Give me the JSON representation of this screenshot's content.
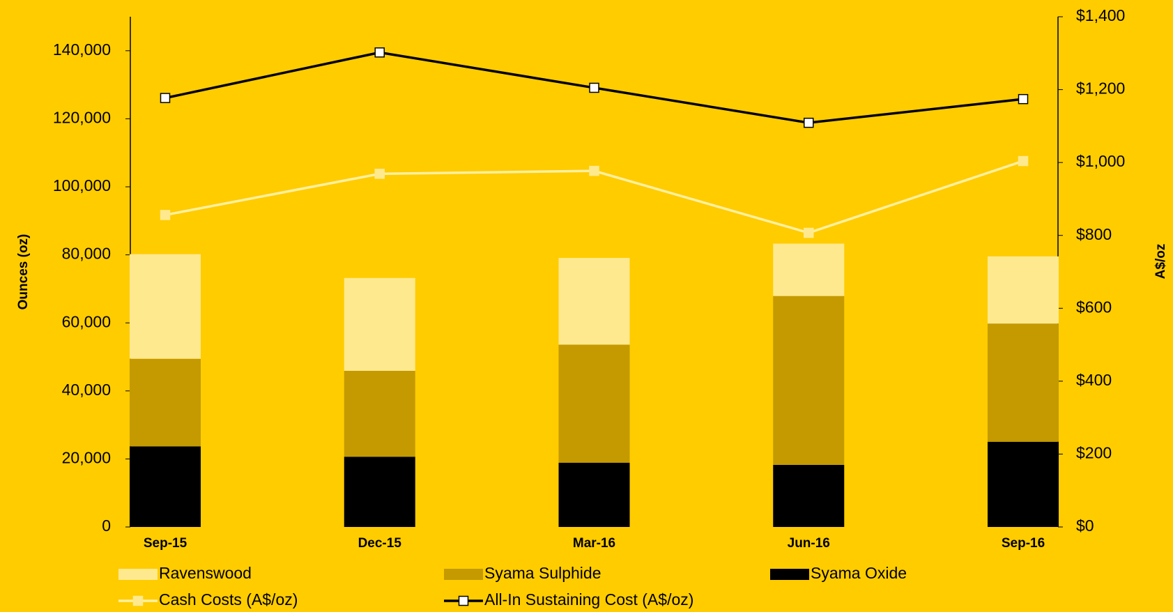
{
  "chart_data": {
    "type": "bar",
    "y_label": "Ounces (oz)",
    "y2_label": "A$/oz",
    "categories": [
      "Sep-15",
      "Dec-15",
      "Mar-16",
      "Jun-16",
      "Sep-16"
    ],
    "series": [
      {
        "name": "Syama Oxide",
        "type": "bar",
        "color": "#000000",
        "values": [
          23700,
          20650,
          18900,
          18250,
          25050
        ]
      },
      {
        "name": "Syama Sulphide",
        "type": "bar",
        "color": "#C49A00",
        "values": [
          25750,
          25250,
          34700,
          49650,
          34750
        ]
      },
      {
        "name": "Ravenswood",
        "type": "bar",
        "color": "#FFE98F",
        "values": [
          30750,
          27300,
          25500,
          15400,
          19750
        ]
      },
      {
        "name": "Cash Costs (A$/oz)",
        "type": "line",
        "axis": "y2",
        "color": "#FFF0A0",
        "marker_color": "#FFE98F",
        "values": [
          856,
          969,
          977,
          807,
          1004
        ]
      },
      {
        "name": "All-In Sustaining Cost (A$/oz)",
        "type": "line",
        "axis": "y2",
        "color": "#000000",
        "marker_color": "#FFFFFF",
        "values": [
          1177,
          1302,
          1205,
          1109,
          1174
        ]
      }
    ],
    "legend_order": [
      2,
      1,
      0,
      3,
      4
    ],
    "ylim": [
      0,
      150000
    ],
    "yticks": [
      0,
      {
        "value": 20000,
        "label": "20,000"
      },
      {
        "value": 40000,
        "label": "40,000"
      },
      {
        "value": 60000,
        "label": "60,000"
      },
      {
        "value": 80000,
        "label": "80,000"
      },
      {
        "value": 100000,
        "label": "100,000"
      },
      {
        "value": 120000,
        "label": "120,000"
      },
      {
        "value": 140000,
        "label": "140,000"
      }
    ],
    "y2lim": [
      0,
      1400
    ],
    "y2ticks": [
      {
        "value": 0,
        "label": "$0"
      },
      {
        "value": 200,
        "label": "$200"
      },
      {
        "value": 400,
        "label": "$400"
      },
      {
        "value": 600,
        "label": "$600"
      },
      {
        "value": 800,
        "label": "$800"
      },
      {
        "value": 1000,
        "label": "$1,000"
      },
      {
        "value": 1200,
        "label": "$1,200"
      },
      {
        "value": 1400,
        "label": "$1,400"
      }
    ],
    "background": "#FFCC00",
    "grid": false
  }
}
